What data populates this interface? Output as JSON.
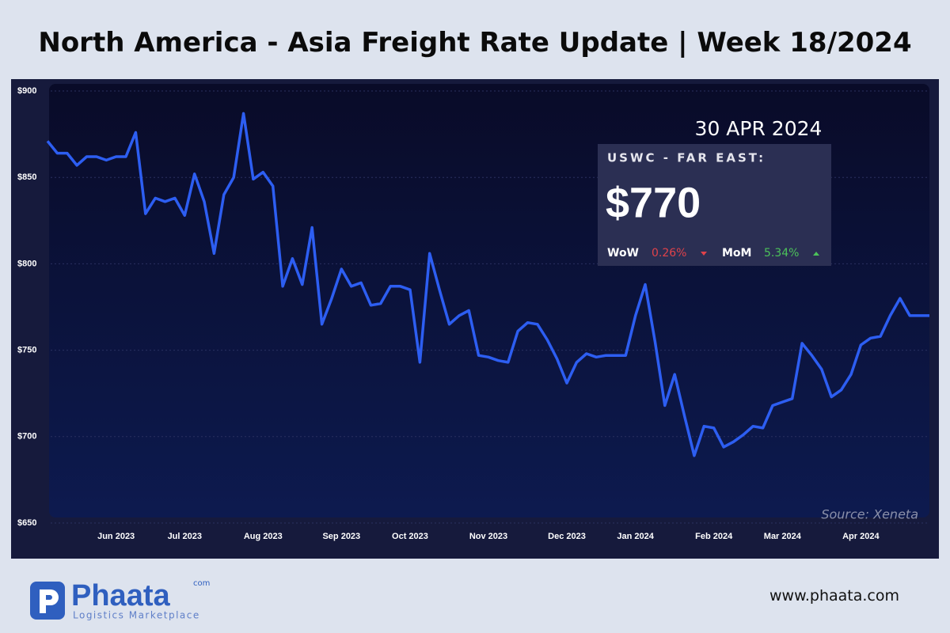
{
  "chart_data": {
    "type": "line",
    "title": "North America - Asia Freight Rate Update | Week 18/2024",
    "categories": [
      null,
      null,
      null,
      null,
      null,
      null,
      null,
      "Jun 2023",
      null,
      null,
      null,
      null,
      null,
      null,
      "Jul 2023",
      null,
      null,
      null,
      null,
      null,
      null,
      null,
      "Aug 2023",
      null,
      null,
      null,
      null,
      null,
      null,
      null,
      "Sep 2023",
      null,
      null,
      null,
      null,
      null,
      null,
      "Oct 2023",
      null,
      null,
      null,
      null,
      null,
      null,
      null,
      "Nov 2023",
      null,
      null,
      null,
      null,
      null,
      null,
      null,
      "Dec 2023",
      null,
      null,
      null,
      null,
      null,
      null,
      "Jan 2024",
      null,
      null,
      null,
      null,
      null,
      null,
      null,
      "Feb 2024",
      null,
      null,
      null,
      null,
      null,
      null,
      "Mar 2024",
      null,
      null,
      null,
      null,
      null,
      null,
      null,
      "Apr 2024",
      null,
      null,
      null,
      null,
      null,
      null,
      null
    ],
    "series": [
      {
        "name": "USWC - FAR EAST",
        "color": "#2d5ef2",
        "values": [
          871,
          864,
          864,
          857,
          862,
          862,
          860,
          862,
          862,
          876,
          829,
          838,
          836,
          838,
          828,
          852,
          836,
          806,
          840,
          850,
          887,
          849,
          853,
          845,
          787,
          803,
          788,
          821,
          765,
          780,
          797,
          787,
          789,
          776,
          777,
          787,
          787,
          785,
          743,
          806,
          785,
          765,
          770,
          773,
          747,
          746,
          744,
          743,
          761,
          766,
          765,
          756,
          745,
          731,
          743,
          748,
          746,
          747,
          747,
          747,
          770,
          788,
          755,
          718,
          736,
          712,
          689,
          706,
          705,
          694,
          697,
          701,
          706,
          705,
          718,
          720,
          722,
          754,
          747,
          739,
          723,
          727,
          736,
          753,
          757,
          758,
          770,
          780,
          770,
          770,
          770
        ]
      }
    ],
    "ylim": [
      650,
      900
    ],
    "yticks": [
      {
        "value": 650,
        "label": "$650"
      },
      {
        "value": 700,
        "label": "$700"
      },
      {
        "value": 750,
        "label": "$750"
      },
      {
        "value": 800,
        "label": "$800"
      },
      {
        "value": 850,
        "label": "$850"
      },
      {
        "value": 900,
        "label": "$900"
      }
    ],
    "grid": true,
    "source": "Source: Xeneta",
    "callout": {
      "date": "30 APR 2024",
      "label": "USWC - FAR EAST:",
      "value": "$770",
      "wow_label": "WoW",
      "wow": "0.26%",
      "mom_label": "MoM",
      "mom": "5.34%"
    }
  },
  "footer": {
    "logo": "Phaata",
    "logo_suffix": "com",
    "tagline": "Logistics Marketplace",
    "website": "www.phaata.com"
  }
}
